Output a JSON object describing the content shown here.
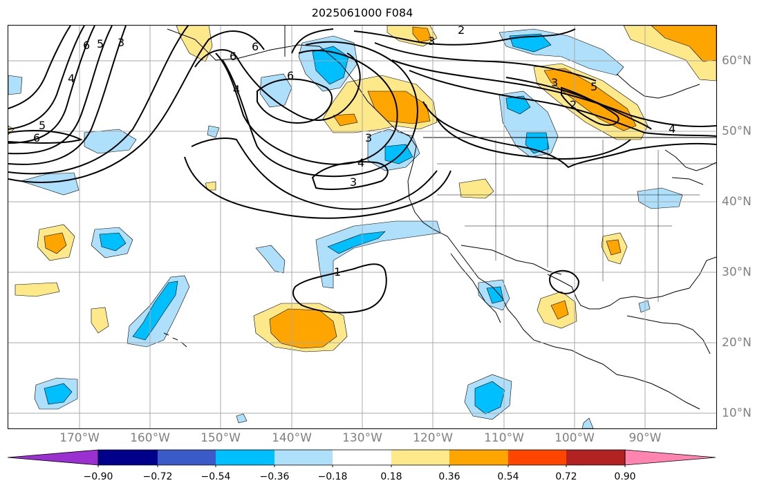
{
  "title": "2025061000 F084",
  "lon_labels": [
    "170°W",
    "160°W",
    "150°W",
    "140°W",
    "130°W",
    "120°W",
    "110°W",
    "100°W",
    "90°W"
  ],
  "lat_labels": [
    "60°N",
    "50°N",
    "40°N",
    "30°N",
    "20°N",
    "10°N"
  ],
  "contour_labels": [
    "6",
    "5",
    "3",
    "4",
    "5",
    "6",
    "6",
    "4",
    "6",
    "6",
    "3",
    "2",
    "3",
    "5",
    "2",
    "4",
    "3",
    "4",
    "3",
    "1"
  ],
  "colorbar": {
    "tick_labels": [
      "−0.90",
      "−0.72",
      "−0.54",
      "−0.36",
      "−0.18",
      "0.18",
      "0.36",
      "0.54",
      "0.72",
      "0.90"
    ],
    "colors": [
      "#9b30d0",
      "#00008b",
      "#3a5bc7",
      "#00bfff",
      "#aee0fb",
      "#ffffff",
      "#fde88a",
      "#ffa500",
      "#ff4500",
      "#b22222",
      "#ff85b0"
    ]
  },
  "colors": {
    "neg_light": "#aee0fb",
    "neg_mid": "#00bfff",
    "pos_light": "#fde88a",
    "pos_mid": "#ffa500",
    "grid": "#a9a9a9",
    "coast": "#000000"
  }
}
